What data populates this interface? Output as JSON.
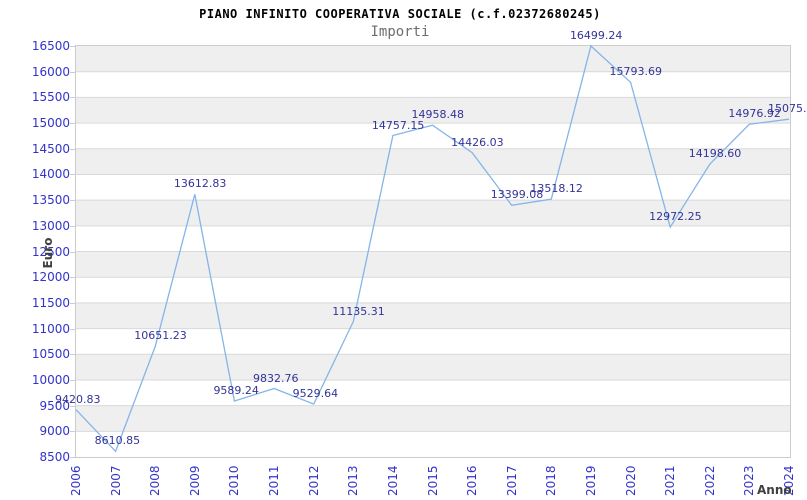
{
  "header": {
    "title": "PIANO INFINITO COOPERATIVA SOCIALE (c.f.02372680245)",
    "subtitle": "Importi"
  },
  "chart_data": {
    "type": "line",
    "title": "PIANO INFINITO COOPERATIVA SOCIALE (c.f.02372680245)",
    "subtitle": "Importi",
    "xlabel": "Anno",
    "ylabel": "Euro",
    "x": [
      2006,
      2007,
      2008,
      2009,
      2010,
      2011,
      2012,
      2013,
      2014,
      2015,
      2016,
      2017,
      2018,
      2019,
      2020,
      2021,
      2022,
      2023,
      2024
    ],
    "values": [
      9420.83,
      8610.85,
      10651.23,
      13612.83,
      9589.24,
      9832.76,
      9529.64,
      11135.31,
      14757.15,
      14958.48,
      14426.03,
      13399.08,
      13518.12,
      16499.24,
      15793.69,
      12972.25,
      14198.6,
      14976.92,
      15075
    ],
    "point_labels": [
      "9420.83",
      "8610.85",
      "10651.23",
      "13612.83",
      "9589.24",
      "9832.76",
      "9529.64",
      "11135.31",
      "14757.15",
      "14958.48",
      "14426.03",
      "13399.08",
      "13518.12",
      "16499.24",
      "15793.69",
      "12972.25",
      "14198.60",
      "14976.92",
      "15075."
    ],
    "ylim": [
      8500,
      16500
    ],
    "ytick_step": 500,
    "grid": "horizontal",
    "banded_background": true,
    "legend": "none",
    "colors": {
      "line": "#85b5e8",
      "point_label": "#333399",
      "tick_label": "#3333cc",
      "band": "#efefef",
      "gridline": "#d9d9d9",
      "plot_border": "#cccccc",
      "axis_title": "#404040",
      "title": "#000000",
      "subtitle": "#6e6e6e"
    }
  }
}
